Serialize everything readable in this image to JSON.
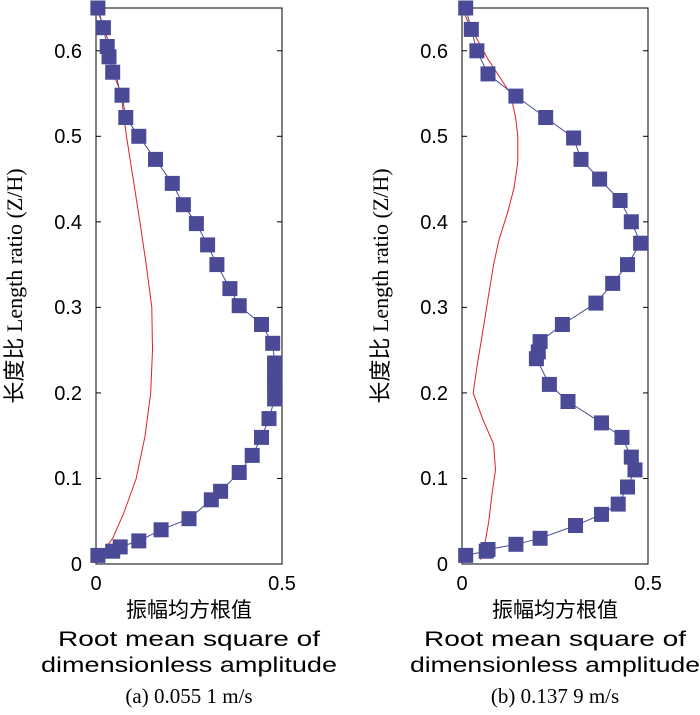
{
  "chart_data": [
    {
      "type": "line",
      "caption": "(a) 0.055 1 m/s",
      "ylabel": "长度比 Length ratio (Z/H)",
      "xlabel_lines": [
        "振幅均方根值",
        "Root mean square  of",
        "dimensionless amplitude"
      ],
      "xlim": [
        0,
        0.5
      ],
      "ylim": [
        0,
        0.65
      ],
      "xticks": [
        "0",
        "0.5"
      ],
      "yticks": [
        "0",
        "0.1",
        "0.2",
        "0.3",
        "0.4",
        "0.5",
        "0.6"
      ],
      "series": [
        {
          "color": "#4a4a96",
          "markers": "square",
          "points": [
            [
              0.005,
              0.65
            ],
            [
              0.02,
              0.627
            ],
            [
              0.03,
              0.605
            ],
            [
              0.035,
              0.593
            ],
            [
              0.045,
              0.575
            ],
            [
              0.07,
              0.548
            ],
            [
              0.08,
              0.522
            ],
            [
              0.115,
              0.5
            ],
            [
              0.16,
              0.473
            ],
            [
              0.205,
              0.445
            ],
            [
              0.235,
              0.42
            ],
            [
              0.27,
              0.398
            ],
            [
              0.3,
              0.373
            ],
            [
              0.325,
              0.35
            ],
            [
              0.36,
              0.322
            ],
            [
              0.385,
              0.302
            ],
            [
              0.445,
              0.28
            ],
            [
              0.475,
              0.258
            ],
            [
              0.48,
              0.235
            ],
            [
              0.48,
              0.222
            ],
            [
              0.48,
              0.21
            ],
            [
              0.48,
              0.193
            ],
            [
              0.465,
              0.17
            ],
            [
              0.445,
              0.148
            ],
            [
              0.42,
              0.127
            ],
            [
              0.385,
              0.107
            ],
            [
              0.335,
              0.085
            ],
            [
              0.31,
              0.075
            ],
            [
              0.25,
              0.053
            ],
            [
              0.175,
              0.04
            ],
            [
              0.115,
              0.027
            ],
            [
              0.065,
              0.02
            ],
            [
              0.045,
              0.015
            ],
            [
              0.005,
              0.01
            ]
          ]
        },
        {
          "color": "#e02020",
          "markers": "none",
          "points": [
            [
              0.0,
              0.65
            ],
            [
              0.02,
              0.63
            ],
            [
              0.04,
              0.6
            ],
            [
              0.055,
              0.57
            ],
            [
              0.07,
              0.54
            ],
            [
              0.082,
              0.5
            ],
            [
              0.1,
              0.45
            ],
            [
              0.118,
              0.4
            ],
            [
              0.135,
              0.35
            ],
            [
              0.15,
              0.3
            ],
            [
              0.152,
              0.25
            ],
            [
              0.147,
              0.2
            ],
            [
              0.132,
              0.15
            ],
            [
              0.108,
              0.1
            ],
            [
              0.075,
              0.06
            ],
            [
              0.045,
              0.03
            ],
            [
              0.015,
              0.012
            ],
            [
              0.0,
              0.005
            ]
          ]
        }
      ]
    },
    {
      "type": "line",
      "caption": "(b) 0.137 9 m/s",
      "ylabel": "长度比 Length ratio (Z/H)",
      "xlabel_lines": [
        "振幅均方根值",
        "Root mean square  of",
        "dimensionless amplitude"
      ],
      "xlim": [
        0,
        0.5
      ],
      "ylim": [
        0,
        0.65
      ],
      "xticks": [
        "0",
        "0.5"
      ],
      "yticks": [
        "0",
        "0.1",
        "0.2",
        "0.3",
        "0.4",
        "0.5",
        "0.6"
      ],
      "series": [
        {
          "color": "#4a4a96",
          "markers": "square",
          "points": [
            [
              0.01,
              0.65
            ],
            [
              0.025,
              0.625
            ],
            [
              0.04,
              0.6
            ],
            [
              0.07,
              0.573
            ],
            [
              0.145,
              0.547
            ],
            [
              0.225,
              0.522
            ],
            [
              0.3,
              0.498
            ],
            [
              0.32,
              0.473
            ],
            [
              0.37,
              0.45
            ],
            [
              0.425,
              0.425
            ],
            [
              0.455,
              0.4
            ],
            [
              0.48,
              0.375
            ],
            [
              0.445,
              0.35
            ],
            [
              0.405,
              0.328
            ],
            [
              0.36,
              0.305
            ],
            [
              0.27,
              0.28
            ],
            [
              0.21,
              0.26
            ],
            [
              0.205,
              0.248
            ],
            [
              0.2,
              0.24
            ],
            [
              0.235,
              0.21
            ],
            [
              0.285,
              0.19
            ],
            [
              0.375,
              0.165
            ],
            [
              0.43,
              0.148
            ],
            [
              0.455,
              0.125
            ],
            [
              0.465,
              0.11
            ],
            [
              0.445,
              0.09
            ],
            [
              0.42,
              0.07
            ],
            [
              0.375,
              0.058
            ],
            [
              0.305,
              0.045
            ],
            [
              0.21,
              0.03
            ],
            [
              0.145,
              0.023
            ],
            [
              0.07,
              0.017
            ],
            [
              0.065,
              0.015
            ],
            [
              0.01,
              0.01
            ]
          ]
        },
        {
          "color": "#e02020",
          "markers": "none",
          "points": [
            [
              0.0,
              0.65
            ],
            [
              0.02,
              0.63
            ],
            [
              0.045,
              0.61
            ],
            [
              0.07,
              0.59
            ],
            [
              0.1,
              0.57
            ],
            [
              0.13,
              0.55
            ],
            [
              0.145,
              0.52
            ],
            [
              0.15,
              0.5
            ],
            [
              0.15,
              0.47
            ],
            [
              0.14,
              0.44
            ],
            [
              0.122,
              0.41
            ],
            [
              0.1,
              0.38
            ],
            [
              0.085,
              0.35
            ],
            [
              0.07,
              0.31
            ],
            [
              0.055,
              0.27
            ],
            [
              0.04,
              0.23
            ],
            [
              0.03,
              0.2
            ],
            [
              0.055,
              0.17
            ],
            [
              0.085,
              0.14
            ],
            [
              0.09,
              0.11
            ],
            [
              0.08,
              0.08
            ],
            [
              0.072,
              0.05
            ],
            [
              0.06,
              0.02
            ],
            [
              0.05,
              0.005
            ]
          ]
        }
      ]
    }
  ]
}
